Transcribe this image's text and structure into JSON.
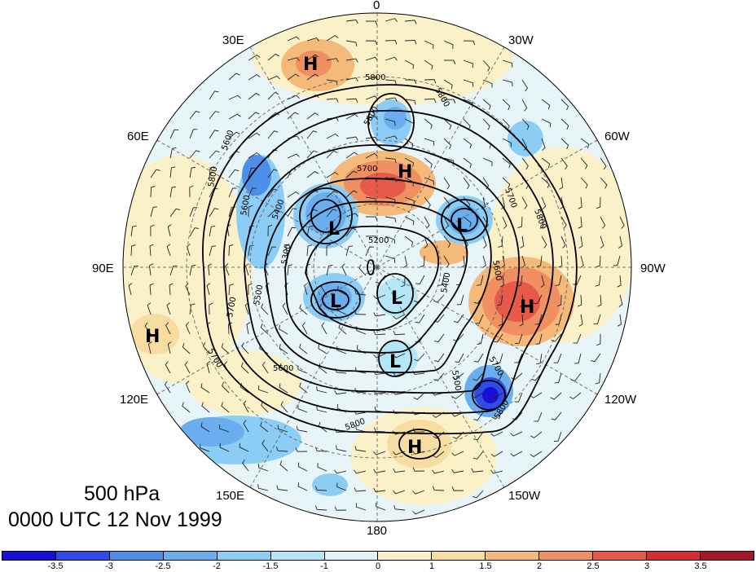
{
  "map": {
    "projection": "north-polar-stereographic",
    "level_label": "500 hPa",
    "time_label": "0000 UTC 12 Nov 1999",
    "longitude_labels": [
      "0",
      "30W",
      "60W",
      "90W",
      "120W",
      "150W",
      "180",
      "150E",
      "120E",
      "90E",
      "60E",
      "30E"
    ],
    "contour_labels": [
      "5800",
      "5800",
      "5600",
      "5700",
      "5800",
      "5700",
      "5600",
      "5400",
      "5200",
      "5300",
      "5500",
      "5700",
      "5800",
      "5600",
      "5400",
      "5600",
      "5500",
      "5600",
      "5700",
      "5800",
      "5800",
      "5700"
    ],
    "pressure_centers": [
      {
        "type": "H",
        "label": "H"
      },
      {
        "type": "H",
        "label": "H"
      },
      {
        "type": "L",
        "label": "L"
      },
      {
        "type": "L",
        "label": "L"
      },
      {
        "type": "L",
        "label": "L"
      },
      {
        "type": "L",
        "label": "L"
      },
      {
        "type": "L",
        "label": "L"
      },
      {
        "type": "H",
        "label": "H"
      },
      {
        "type": "H",
        "label": "H"
      },
      {
        "type": "H",
        "label": "H"
      }
    ]
  },
  "colorbar": {
    "colors": [
      "#1a0fd6",
      "#2f4ce8",
      "#4d8fe8",
      "#6aaef0",
      "#8ccdf5",
      "#b5e6f7",
      "#dff3f9",
      "#fbf1c9",
      "#f7dda0",
      "#f5b97a",
      "#ef8f62",
      "#e75a4a",
      "#d42e35",
      "#a61629"
    ],
    "tick_labels": [
      "-3.5",
      "-3",
      "-2.5",
      "-2",
      "-1.5",
      "-1",
      "0",
      "1",
      "1.5",
      "2",
      "2.5",
      "3",
      "3.5"
    ]
  }
}
